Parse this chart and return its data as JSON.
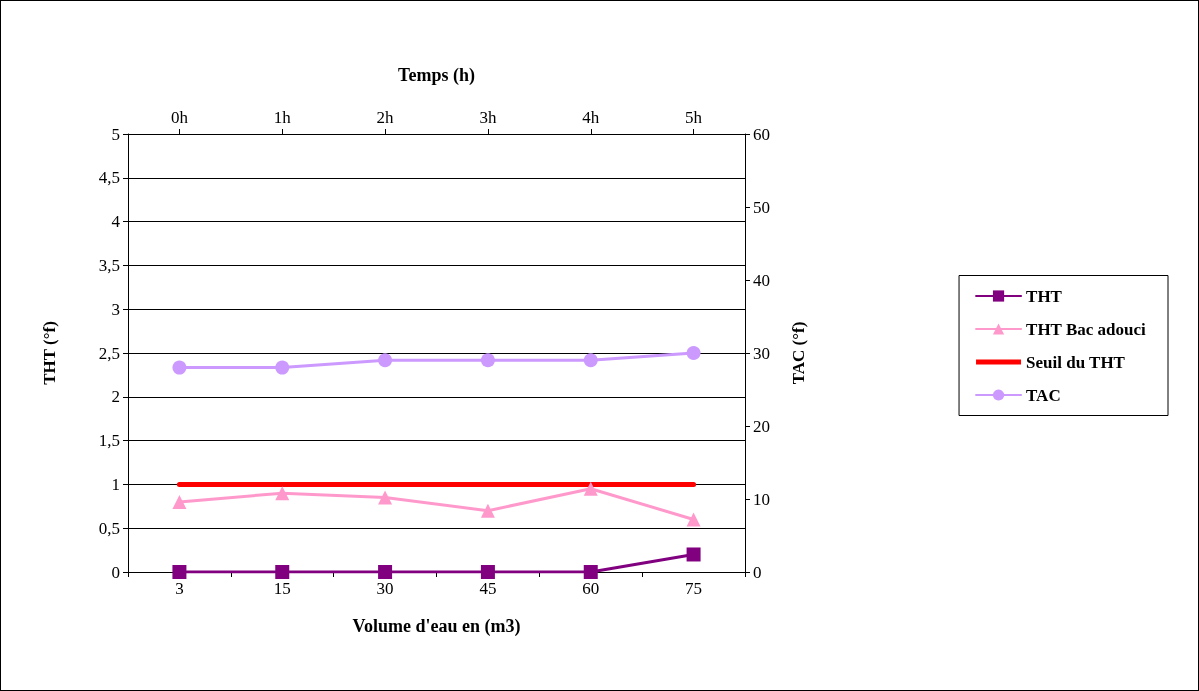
{
  "chart_data": {
    "type": "line",
    "categories": [
      "3",
      "15",
      "30",
      "45",
      "60",
      "75"
    ],
    "xlabel": "Volume d'eau en (m3)",
    "ylabel": "THT (°f)",
    "y2label": "TAC (°f)",
    "x2label": "Temps (h)",
    "x2lim": [
      -0.5,
      5.5
    ],
    "x2ticks": [
      {
        "value": 0,
        "label": "0h"
      },
      {
        "value": 1,
        "label": "1h"
      },
      {
        "value": 2,
        "label": "2h"
      },
      {
        "value": 3,
        "label": "3h"
      },
      {
        "value": 4,
        "label": "4h"
      },
      {
        "value": 5,
        "label": "5h"
      }
    ],
    "ylim": [
      0,
      5
    ],
    "yticks": [
      {
        "value": 0,
        "label": "0"
      },
      {
        "value": 0.5,
        "label": "0,5"
      },
      {
        "value": 1,
        "label": "1"
      },
      {
        "value": 1.5,
        "label": "1,5"
      },
      {
        "value": 2,
        "label": "2"
      },
      {
        "value": 2.5,
        "label": "2,5"
      },
      {
        "value": 3,
        "label": "3"
      },
      {
        "value": 3.5,
        "label": "3,5"
      },
      {
        "value": 4,
        "label": "4"
      },
      {
        "value": 4.5,
        "label": "4,5"
      },
      {
        "value": 5,
        "label": "5"
      }
    ],
    "y2lim": [
      0,
      60
    ],
    "y2ticks": [
      0,
      10,
      20,
      30,
      40,
      50,
      60
    ],
    "series": [
      {
        "name": "THT",
        "color": "#800080",
        "marker": "square",
        "values": [
          0,
          0,
          0,
          0,
          0,
          0.2
        ]
      },
      {
        "name": "THT Bac adouci",
        "color": "#ff99cc",
        "marker": "triangle",
        "values": [
          0.8,
          0.9,
          0.85,
          0.7,
          0.95,
          0.6
        ]
      },
      {
        "name": "Seuil du THT",
        "color": "#ff0000",
        "marker": "none",
        "values": [
          1,
          1,
          1,
          1,
          1,
          1
        ]
      },
      {
        "name": "TAC",
        "color": "#cc99ff",
        "marker": "circle",
        "axis": "y2",
        "values": [
          28,
          28,
          29,
          29,
          29,
          30
        ]
      }
    ],
    "grid": "y",
    "legend": "right"
  }
}
